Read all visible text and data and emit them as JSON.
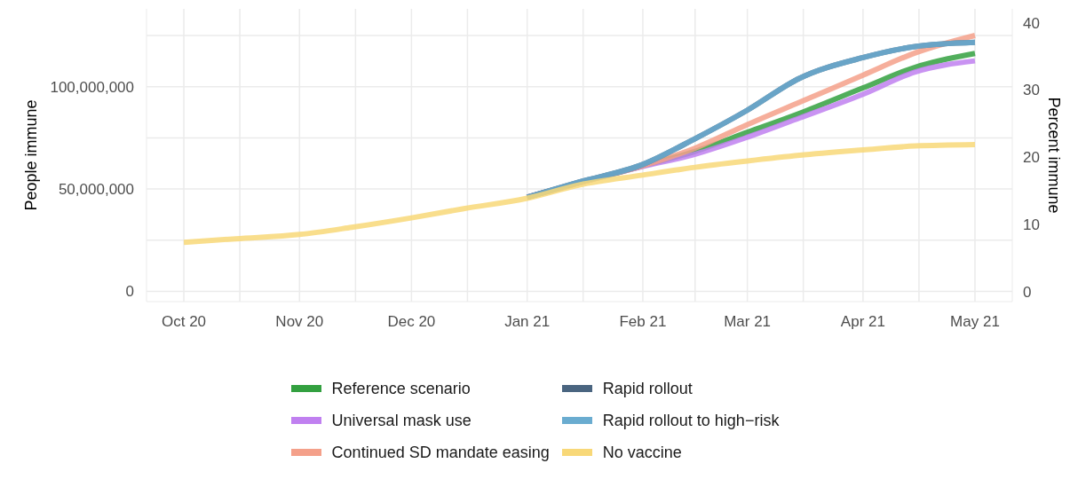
{
  "chart_data": {
    "type": "line",
    "xlabel": null,
    "ylabel": "People immune",
    "y2label": "Percent immune",
    "x": [
      "2020-10-01",
      "2020-10-15",
      "2020-11-01",
      "2020-11-15",
      "2020-12-01",
      "2020-12-15",
      "2021-01-01",
      "2021-01-15",
      "2021-02-01",
      "2021-02-15",
      "2021-03-01",
      "2021-03-15",
      "2021-04-01",
      "2021-04-15",
      "2021-05-01"
    ],
    "series": [
      {
        "name": "Reference scenario",
        "color": "#33a040",
        "values": [
          null,
          null,
          null,
          null,
          null,
          null,
          46000000,
          53000000,
          61300000,
          68400000,
          77700000,
          87000000,
          99400000,
          109500000,
          116200000
        ]
      },
      {
        "name": "Universal mask use",
        "color": "#c080f0",
        "values": [
          null,
          null,
          null,
          null,
          null,
          null,
          46000000,
          53000000,
          61000000,
          67000000,
          75300000,
          84700000,
          96300000,
          107200000,
          112600000
        ]
      },
      {
        "name": "Continued SD mandate easing",
        "color": "#f4a08a",
        "values": [
          null,
          null,
          null,
          null,
          null,
          null,
          46000000,
          53200000,
          61300000,
          70000000,
          81500000,
          92400000,
          105600000,
          116500000,
          125000000
        ]
      },
      {
        "name": "Rapid rollout",
        "color": "#4a6580",
        "values": [
          null,
          null,
          null,
          null,
          null,
          null,
          46000000,
          53400000,
          62000000,
          74600000,
          88500000,
          104100000,
          114200000,
          119600000,
          121600000
        ]
      },
      {
        "name": "Rapid rollout to high−risk",
        "color": "#6aacd0",
        "values": [
          null,
          null,
          null,
          null,
          null,
          null,
          46000000,
          53400000,
          62000000,
          74600000,
          88500000,
          104100000,
          114200000,
          119600000,
          121600000
        ]
      },
      {
        "name": "No vaccine",
        "color": "#f8d878",
        "values": [
          23900000,
          25700000,
          27800000,
          31300000,
          35900000,
          40400000,
          45500000,
          52000000,
          56800000,
          60600000,
          63700000,
          66500000,
          69100000,
          71000000,
          71700000
        ]
      }
    ],
    "xlim": [
      "2020-09-21",
      "2021-05-11"
    ],
    "xticks": [
      {
        "value": "2020-10-01",
        "label": "Oct 20"
      },
      {
        "value": "2020-10-16",
        "label": null
      },
      {
        "value": "2020-11-01",
        "label": "Nov 20"
      },
      {
        "value": "2020-11-16",
        "label": null
      },
      {
        "value": "2020-12-01",
        "label": "Dec 20"
      },
      {
        "value": "2020-12-16",
        "label": null
      },
      {
        "value": "2021-01-01",
        "label": "Jan 21"
      },
      {
        "value": "2021-01-16",
        "label": null
      },
      {
        "value": "2021-02-01",
        "label": "Feb 21"
      },
      {
        "value": "2021-02-15",
        "label": null
      },
      {
        "value": "2021-03-01",
        "label": "Mar 21"
      },
      {
        "value": "2021-03-16",
        "label": null
      },
      {
        "value": "2021-04-01",
        "label": "Apr 21"
      },
      {
        "value": "2021-04-16",
        "label": null
      },
      {
        "value": "2021-05-01",
        "label": "May 21"
      }
    ],
    "ylim": [
      -5000000,
      138000000
    ],
    "yticks": [
      {
        "value": 0,
        "label": "0"
      },
      {
        "value": 25000000,
        "label": null
      },
      {
        "value": 50000000,
        "label": "50,000,000"
      },
      {
        "value": 75000000,
        "label": null
      },
      {
        "value": 100000000,
        "label": "100,000,000"
      },
      {
        "value": 125000000,
        "label": null
      }
    ],
    "y2lim": [
      -1.52,
      42.07
    ],
    "y2ticks": [
      0,
      10,
      20,
      30,
      40
    ],
    "grid": true,
    "legend": "bottom",
    "marker": "none",
    "line_style": "solid"
  }
}
